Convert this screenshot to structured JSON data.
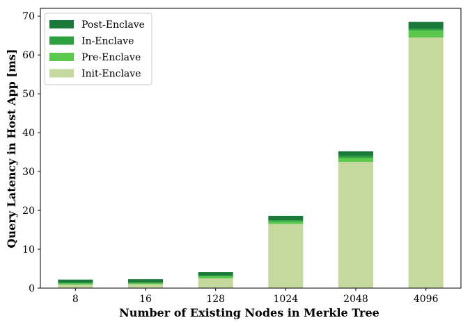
{
  "chart_data": {
    "type": "bar",
    "stacked": true,
    "categories": [
      "8",
      "16",
      "128",
      "1024",
      "2048",
      "4096"
    ],
    "series": [
      {
        "name": "Init-Enclave",
        "color": "#c5d89e",
        "values": [
          0.9,
          1.0,
          2.5,
          16.5,
          32.5,
          64.5
        ]
      },
      {
        "name": "Pre-Enclave",
        "color": "#5ac84a",
        "values": [
          0.3,
          0.3,
          0.5,
          0.6,
          1.0,
          1.8
        ]
      },
      {
        "name": "In-Enclave",
        "color": "#2ca03c",
        "values": [
          0.2,
          0.2,
          0.3,
          0.4,
          0.5,
          0.4
        ]
      },
      {
        "name": "Post-Enclave",
        "color": "#1a7a3a",
        "values": [
          0.8,
          0.8,
          0.8,
          1.1,
          1.2,
          1.8
        ]
      }
    ],
    "xlabel": "Number of Existing Nodes in Merkle Tree",
    "ylabel": "Query Latency in Host App [ms]",
    "ylim": [
      0,
      72
    ],
    "yticks": [
      0,
      10,
      20,
      30,
      40,
      50,
      60,
      70
    ],
    "grid": false,
    "legend": "top-left",
    "legend_order": [
      "Post-Enclave",
      "In-Enclave",
      "Pre-Enclave",
      "Init-Enclave"
    ]
  }
}
